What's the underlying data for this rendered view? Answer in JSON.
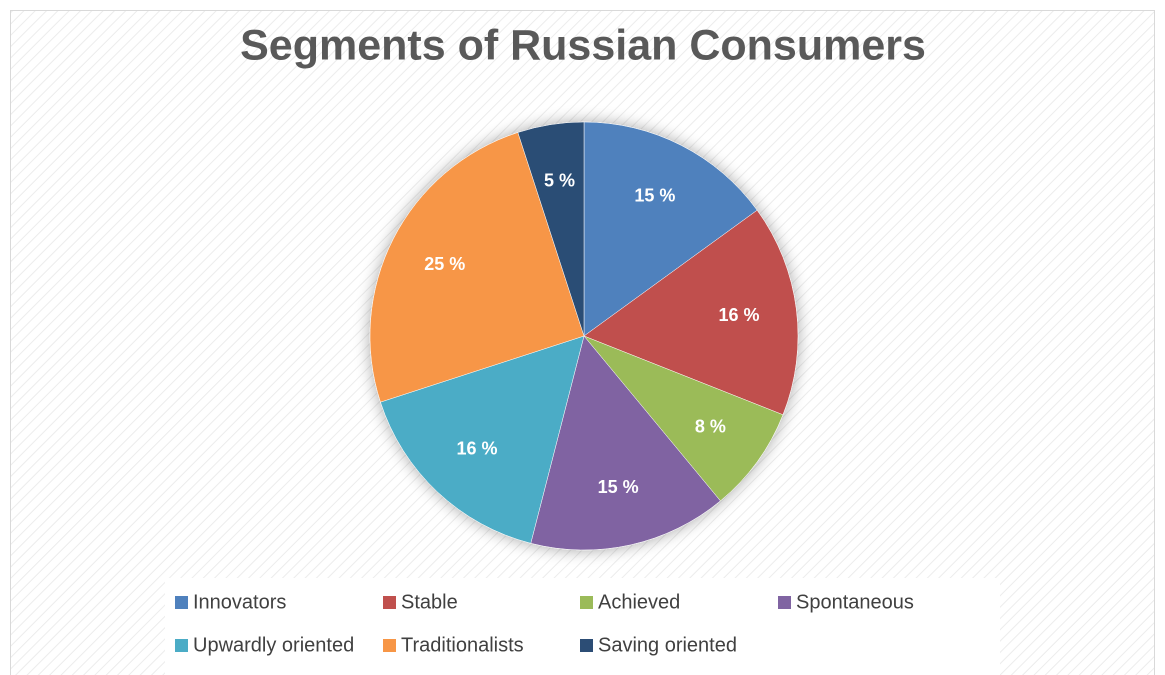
{
  "chart_data": {
    "type": "pie",
    "title": "Segments of Russian Consumers",
    "categories": [
      "Innovators",
      "Stable",
      "Achieved",
      "Spontaneous",
      "Upwardly oriented",
      "Traditionalists",
      "Saving oriented"
    ],
    "values": [
      15,
      16,
      8,
      15,
      16,
      25,
      5
    ],
    "value_labels": [
      "15 %",
      "16 %",
      "8 %",
      "15 %",
      "16 %",
      "25 %",
      "5 %"
    ],
    "colors": [
      "#4f81bd",
      "#c0504d",
      "#9bbb59",
      "#8064a2",
      "#4bacc6",
      "#f79646",
      "#2c4d75"
    ],
    "legend": "bottom"
  }
}
